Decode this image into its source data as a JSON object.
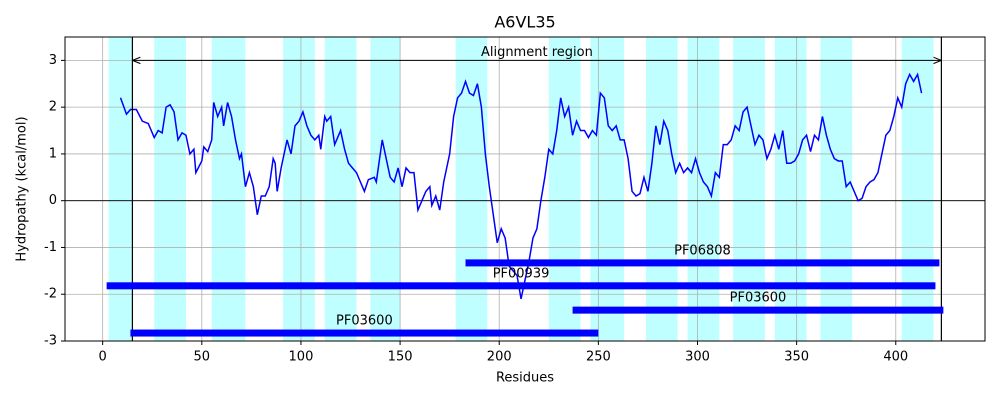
{
  "chart_data": {
    "type": "line",
    "title": "A6VL35",
    "x_label": "Residues",
    "y_label": "Hydropathy (kcal/mol)",
    "xlim": [
      -19,
      445
    ],
    "ylim": [
      -3,
      3.5
    ],
    "xticks": [
      0,
      50,
      100,
      150,
      200,
      250,
      300,
      350,
      400
    ],
    "yticks": [
      -3,
      -2,
      -1,
      0,
      1,
      2,
      3
    ],
    "grid": true,
    "hline": 0,
    "region_color": "#bfffff",
    "regions": [
      [
        3,
        15
      ],
      [
        26,
        42
      ],
      [
        55,
        72
      ],
      [
        91,
        107
      ],
      [
        112,
        128
      ],
      [
        135,
        150
      ],
      [
        178,
        194
      ],
      [
        225,
        241
      ],
      [
        246,
        263
      ],
      [
        274,
        290
      ],
      [
        295,
        311
      ],
      [
        318,
        334
      ],
      [
        339,
        355
      ],
      [
        362,
        378
      ],
      [
        403,
        419
      ]
    ],
    "alignment": {
      "label": "Alignment region",
      "start": 15,
      "end": 423,
      "y": 3
    },
    "domain_color": "#0000ff",
    "domains": [
      {
        "name": "PF06808",
        "start": 183,
        "end": 422,
        "y": -1.33
      },
      {
        "name": "PF00939",
        "start": 2,
        "end": 420,
        "y": -1.82
      },
      {
        "name": "PF03600",
        "start": 237,
        "end": 424,
        "y": -2.34
      },
      {
        "name": "PF03600",
        "start": 14,
        "end": 250,
        "y": -2.83
      }
    ],
    "x": [
      9,
      12,
      14,
      17,
      20,
      23,
      26,
      28,
      30,
      32,
      34,
      36,
      38,
      40,
      42,
      44,
      46,
      47,
      50,
      51,
      53,
      55,
      56,
      58,
      60,
      61,
      63,
      65,
      67,
      69,
      70,
      72,
      74,
      76,
      78,
      80,
      82,
      84,
      86,
      87,
      88,
      90,
      91,
      93,
      95,
      97,
      99,
      101,
      103,
      105,
      107,
      109,
      110,
      112,
      113,
      115,
      117,
      120,
      122,
      124,
      126,
      128,
      130,
      132,
      134,
      137,
      138,
      140,
      141,
      143,
      145,
      147,
      149,
      151,
      153,
      155,
      157,
      159,
      161,
      163,
      165,
      166,
      168,
      170,
      172,
      175,
      177,
      179,
      181,
      183,
      185,
      187,
      189,
      191,
      193,
      195,
      197,
      199,
      201,
      203,
      205,
      207,
      209,
      211,
      213,
      215,
      217,
      219,
      221,
      223,
      225,
      227,
      229,
      231,
      233,
      235,
      237,
      239,
      241,
      243,
      245,
      247,
      249,
      251,
      253,
      255,
      257,
      259,
      261,
      263,
      265,
      267,
      269,
      271,
      273,
      275,
      277,
      279,
      281,
      283,
      285,
      287,
      289,
      291,
      293,
      295,
      297,
      299,
      301,
      303,
      305,
      307,
      309,
      311,
      313,
      315,
      317,
      319,
      321,
      323,
      325,
      327,
      329,
      331,
      333,
      335,
      337,
      339,
      341,
      343,
      345,
      347,
      349,
      351,
      353,
      355,
      357,
      359,
      361,
      363,
      365,
      367,
      369,
      371,
      373,
      375,
      377,
      379,
      381,
      383,
      385,
      387,
      389,
      391,
      393,
      395,
      397,
      399,
      401,
      403,
      405,
      407,
      409,
      411,
      413
    ],
    "series": [
      {
        "color": "#0000ff",
        "values": [
          2.2,
          1.85,
          1.95,
          1.95,
          1.7,
          1.65,
          1.35,
          1.5,
          1.45,
          2.0,
          2.05,
          1.9,
          1.3,
          1.45,
          1.4,
          1.0,
          1.1,
          0.6,
          0.85,
          1.15,
          1.05,
          1.3,
          2.1,
          1.8,
          2.0,
          1.6,
          2.1,
          1.8,
          1.3,
          0.9,
          1.0,
          0.3,
          0.6,
          0.3,
          -0.3,
          0.1,
          0.1,
          0.3,
          0.9,
          0.8,
          0.2,
          0.7,
          0.9,
          1.3,
          1.0,
          1.6,
          1.7,
          1.9,
          1.6,
          1.4,
          1.3,
          1.4,
          1.1,
          1.8,
          1.7,
          1.8,
          1.2,
          1.5,
          1.1,
          0.8,
          0.7,
          0.6,
          0.4,
          0.2,
          0.45,
          0.5,
          0.4,
          1.0,
          1.3,
          0.9,
          0.5,
          0.4,
          0.7,
          0.3,
          0.7,
          0.6,
          0.6,
          -0.2,
          0.0,
          0.2,
          0.3,
          -0.1,
          0.1,
          -0.2,
          0.4,
          1.0,
          1.8,
          2.2,
          2.3,
          2.55,
          2.3,
          2.25,
          2.5,
          2.0,
          1.0,
          0.3,
          -0.3,
          -0.9,
          -0.6,
          -0.8,
          -1.4,
          -1.5,
          -1.6,
          -2.1,
          -1.7,
          -1.3,
          -0.8,
          -0.6,
          0.0,
          0.5,
          1.1,
          1.0,
          1.5,
          2.2,
          1.8,
          2.0,
          1.4,
          1.7,
          1.5,
          1.5,
          1.35,
          1.5,
          1.4,
          2.3,
          2.2,
          1.6,
          1.5,
          1.6,
          1.3,
          1.3,
          0.9,
          0.2,
          0.1,
          0.15,
          0.5,
          0.2,
          0.8,
          1.6,
          1.2,
          1.7,
          1.5,
          1.0,
          0.6,
          0.8,
          0.6,
          0.7,
          0.6,
          0.9,
          0.6,
          0.4,
          0.3,
          0.1,
          0.6,
          0.5,
          1.2,
          1.2,
          1.3,
          1.6,
          1.5,
          1.9,
          2.0,
          1.6,
          1.2,
          1.4,
          1.3,
          0.9,
          1.1,
          1.4,
          1.1,
          1.5,
          0.8,
          0.8,
          0.85,
          1.0,
          1.3,
          1.4,
          1.05,
          1.4,
          1.3,
          1.8,
          1.4,
          1.1,
          0.9,
          0.85,
          0.85,
          0.3,
          0.4,
          0.2,
          0.0,
          0.05,
          0.3,
          0.4,
          0.45,
          0.6,
          1.0,
          1.4,
          1.5,
          1.8,
          2.2,
          2.0,
          2.5,
          2.7,
          2.55,
          2.7,
          2.3
        ]
      }
    ]
  }
}
